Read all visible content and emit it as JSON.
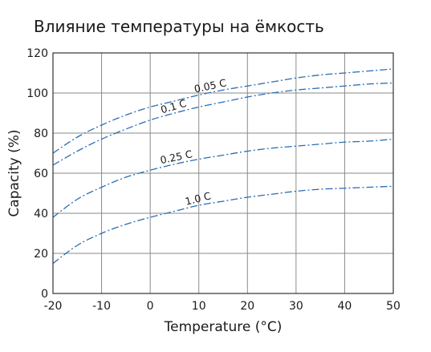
{
  "chart_data": {
    "type": "line",
    "title": "Влияние температуры на ёмкость",
    "xlabel": "Temperature (°C)",
    "ylabel": "Capacity (%)",
    "xlim": [
      -20,
      50
    ],
    "ylim": [
      0,
      120
    ],
    "x_ticks": [
      "-20",
      "-10",
      "0",
      "10",
      "20",
      "30",
      "40",
      "50"
    ],
    "y_ticks": [
      "0",
      "20",
      "40",
      "60",
      "80",
      "100",
      "120"
    ],
    "grid": true,
    "line_color": "#2a6db5",
    "line_style": "dash-dot",
    "x": [
      -20,
      -15,
      -10,
      -5,
      0,
      5,
      10,
      15,
      20,
      25,
      30,
      35,
      40,
      45,
      50
    ],
    "series": [
      {
        "name": "0.05 C",
        "values": [
          70,
          78,
          84,
          89,
          93,
          96,
          99,
          101.5,
          103.5,
          105.5,
          107.5,
          109,
          110,
          111,
          112
        ]
      },
      {
        "name": "0.1 C",
        "values": [
          64,
          71,
          77,
          82,
          86.5,
          90,
          93,
          95.5,
          98,
          100,
          101.5,
          102.5,
          103.5,
          104.5,
          105
        ]
      },
      {
        "name": "0.25 C",
        "values": [
          38,
          47,
          53,
          58,
          61.5,
          64.5,
          67,
          69,
          71,
          72.5,
          73.5,
          74.5,
          75.5,
          76,
          77
        ]
      },
      {
        "name": "1.0 C",
        "values": [
          15,
          24,
          30,
          34.5,
          38,
          41,
          44,
          46,
          48,
          49.5,
          51,
          52,
          52.5,
          53,
          53.5
        ]
      }
    ]
  }
}
